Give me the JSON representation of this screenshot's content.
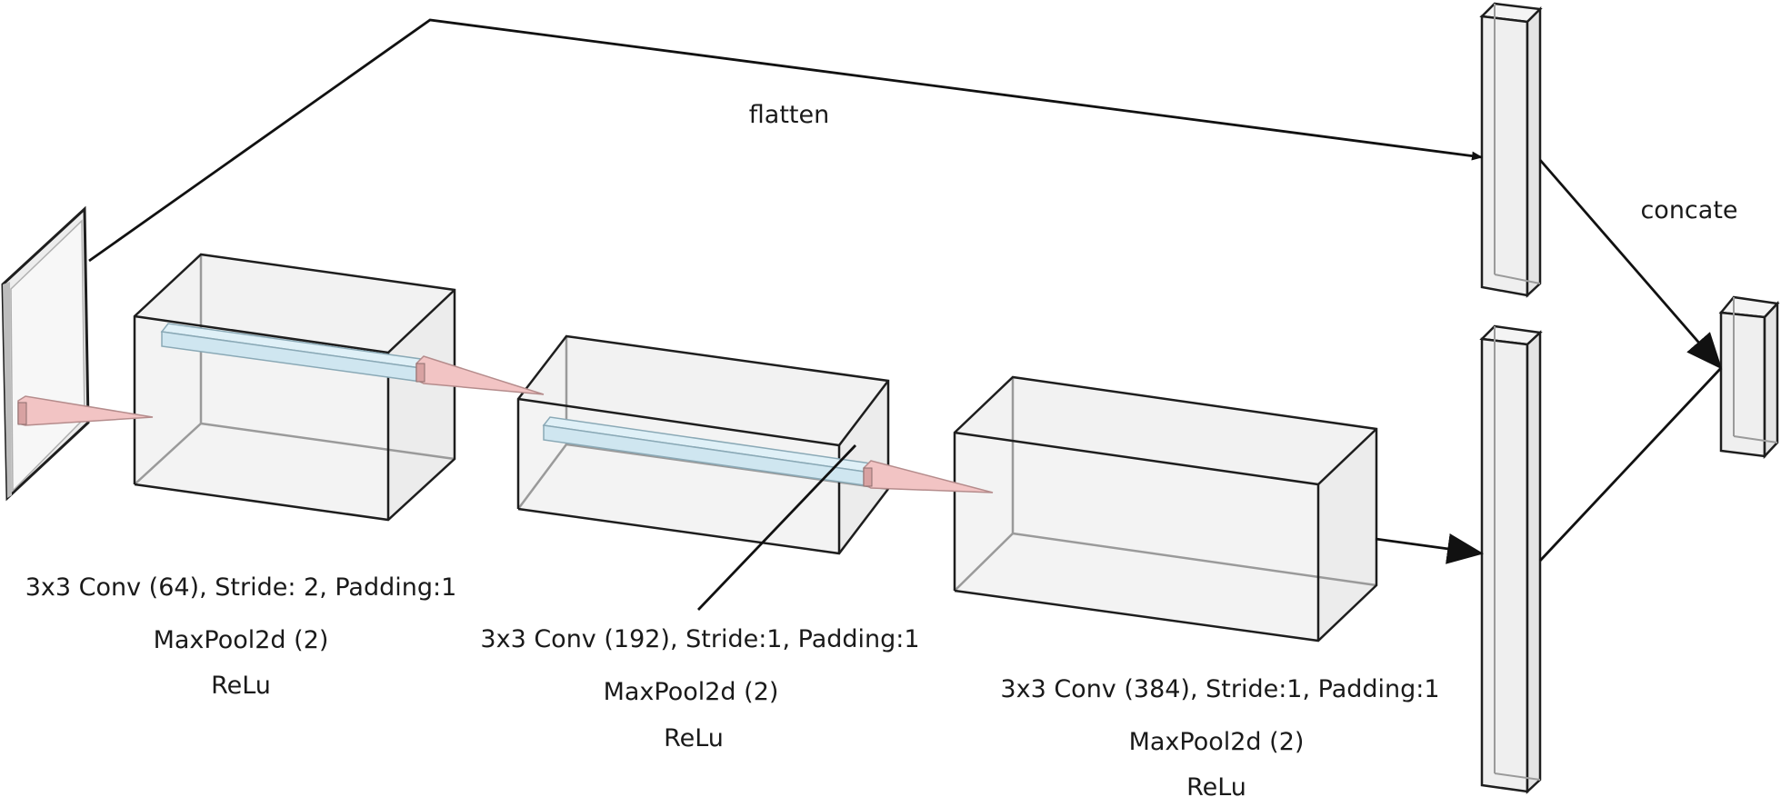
{
  "labels": {
    "flatten": "flatten",
    "concate": "concate"
  },
  "layers": [
    {
      "conv": "3x3 Conv (64),  Stride: 2, Padding:1",
      "pool": "MaxPool2d (2)",
      "act": "ReLu"
    },
    {
      "conv": "3x3 Conv (192),  Stride:1, Padding:1",
      "pool": "MaxPool2d (2)",
      "act": "ReLu"
    },
    {
      "conv": "3x3 Conv (384),  Stride:1, Padding:1",
      "pool": "MaxPool2d (2)",
      "act": "ReLu"
    }
  ],
  "colors": {
    "kernel": "#f2c4c4",
    "feature_column": "#cfe6f0",
    "volume_fill": "#f1f1f1",
    "edge": "#1e1e1e"
  }
}
